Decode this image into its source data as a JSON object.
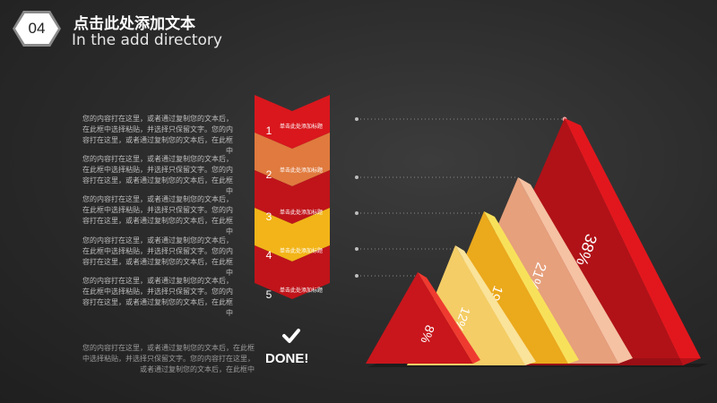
{
  "header": {
    "number": "04",
    "title_cn": "点击此处添加文本",
    "title_en": "In the add directory"
  },
  "paragraphs": [
    "您的内容打在这里，或者通过复制您的文本后，在此框中选择粘贴，并选择只保留文字。您的内容打在这里，或者通过复制您的文本后，在此框中",
    "您的内容打在这里，或者通过复制您的文本后，在此框中选择粘贴，并选择只保留文字。您的内容打在这里，或者通过复制您的文本后，在此框中",
    "您的内容打在这里，或者通过复制您的文本后，在此框中选择粘贴，并选择只保留文字。您的内容打在这里，或者通过复制您的文本后，在此框中",
    "您的内容打在这里，或者通过复制您的文本后，在此框中选择粘贴，并选择只保留文字。您的内容打在这里，或者通过复制您的文本后，在此框中",
    "您的内容打在这里，或者通过复制您的文本后，在此框中选择粘贴，并选择只保留文字。您的内容打在这里，或者通过复制您的文本后，在此框中"
  ],
  "steps": [
    {
      "number": "1",
      "text": "单击此处添加标题",
      "color": "#d9171d"
    },
    {
      "number": "2",
      "text": "单击此处添加标题",
      "color": "#e07a3e"
    },
    {
      "number": "3",
      "text": "单击此处添加标题",
      "color": "#c0141a"
    },
    {
      "number": "4",
      "text": "单击此处添加标题",
      "color": "#f2b418"
    },
    {
      "number": "5",
      "text": "单击此处添加标题",
      "color": "#c0141a"
    }
  ],
  "done_label": "DONE!",
  "footer_text": "您的内容打在这里，或者通过复制您的文本后，在此框中选择粘贴，并选择只保留文字。您的内容打在这里，或者通过复制您的文本后，在此框中",
  "pyramids": [
    {
      "label": "38%",
      "color": "#c8151b"
    },
    {
      "label": "21%",
      "color": "#e8a07a"
    },
    {
      "label": "19%",
      "color": "#f0b62a"
    },
    {
      "label": "12%",
      "color": "#f4cf6a"
    },
    {
      "label": "8%",
      "color": "#cc1a1e"
    }
  ]
}
